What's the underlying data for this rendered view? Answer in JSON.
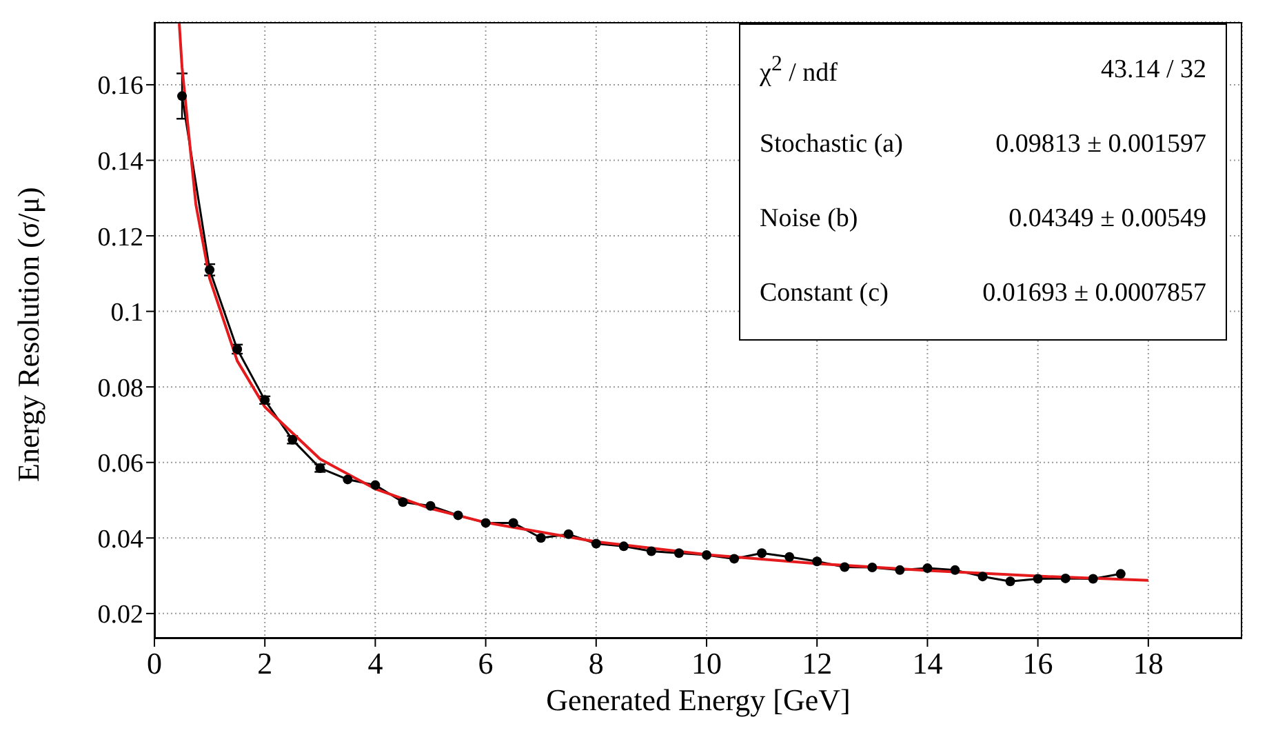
{
  "chart_data": {
    "type": "line",
    "xlabel": "Generated Energy [GeV]",
    "ylabel": "Energy Resolution (σ/μ)",
    "xlim": [
      0,
      19.7
    ],
    "xticks": [
      0,
      2,
      4,
      6,
      8,
      10,
      12,
      14,
      16,
      18
    ],
    "ylim": [
      0.0134,
      0.1766
    ],
    "yticks": [
      0.02,
      0.04,
      0.06,
      0.08,
      0.1,
      0.12,
      0.14,
      0.16
    ],
    "grid": true,
    "x": [
      0.5,
      1,
      1.5,
      2,
      2.5,
      3,
      3.5,
      4,
      4.5,
      5,
      5.5,
      6,
      6.5,
      7,
      7.5,
      8,
      8.5,
      9,
      9.5,
      10,
      10.5,
      11,
      11.5,
      12,
      12.5,
      13,
      13.5,
      14,
      14.5,
      15,
      15.5,
      16,
      16.5,
      17,
      17.5
    ],
    "series": [
      {
        "color": "#000000",
        "marker": "circle",
        "values": [
          0.157,
          0.111,
          0.09,
          0.0765,
          0.066,
          0.0585,
          0.0555,
          0.054,
          0.0495,
          0.0485,
          0.046,
          0.044,
          0.044,
          0.04,
          0.041,
          0.0385,
          0.0378,
          0.0365,
          0.036,
          0.0355,
          0.0345,
          0.036,
          0.035,
          0.0338,
          0.0323,
          0.0322,
          0.0315,
          0.032,
          0.0315,
          0.0298,
          0.0285,
          0.0292,
          0.0293,
          0.0292,
          0.0305
        ],
        "errors": [
          0.006,
          0.0015,
          0.0012,
          0.001,
          0.001,
          0.001,
          null,
          null,
          null,
          null,
          null,
          null,
          null,
          null,
          null,
          null,
          null,
          null,
          null,
          null,
          null,
          null,
          null,
          null,
          null,
          null,
          null,
          null,
          null,
          null,
          null,
          null,
          null,
          null,
          null
        ]
      },
      {
        "color": "#e41a1c",
        "marker": "none",
        "x": [
          0.45,
          0.5,
          0.75,
          1,
          1.5,
          2,
          3,
          4,
          5,
          6,
          8,
          10,
          12,
          14,
          16,
          18
        ],
        "values": [
          0.1762,
          0.1647,
          0.1284,
          0.1087,
          0.0869,
          0.0747,
          0.0609,
          0.053,
          0.0478,
          0.0441,
          0.039,
          0.0356,
          0.0332,
          0.0314,
          0.0299,
          0.0288
        ]
      }
    ],
    "annotations": [
      "χ$^{2}$ / ndf",
      "43.14 / 32",
      "Stochastic (a)",
      "0.09813 ± 0.001597",
      "Noise (b)",
      "0.04349 ± 0.00549",
      "Constant (c)",
      "0.01693 ± 0.0007857"
    ]
  }
}
